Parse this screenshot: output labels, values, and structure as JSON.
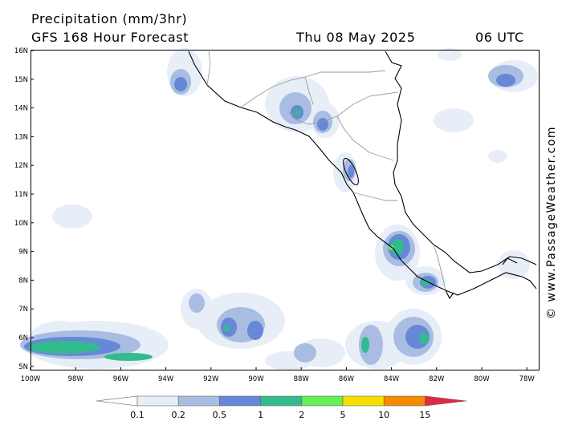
{
  "title": {
    "line1": "Precipitation (mm/3hr)",
    "line2": "GFS 168 Hour Forecast",
    "date": "Thu 08 May 2025",
    "time": "06 UTC"
  },
  "credit": "© www.PassageWeather.com",
  "axes": {
    "lat_labels": [
      "16N",
      "15N",
      "14N",
      "13N",
      "12N",
      "11N",
      "10N",
      "9N",
      "8N",
      "7N",
      "6N",
      "5N"
    ],
    "lon_labels": [
      "100W",
      "98W",
      "96W",
      "94W",
      "92W",
      "90W",
      "88W",
      "86W",
      "84W",
      "82W",
      "80W",
      "78W"
    ]
  },
  "legend": {
    "labels": [
      "0.1",
      "0.2",
      "0.5",
      "1",
      "2",
      "5",
      "10",
      "15"
    ],
    "colors": [
      "#ffffff",
      "#e8eef8",
      "#a9bde2",
      "#6688d6",
      "#33bb8e",
      "#66ee55",
      "#f5e000",
      "#f58a00",
      "#e02840"
    ]
  },
  "colors": {
    "land_border": "#000000",
    "political_border": "#9a9a9a",
    "precip_light": "#e8eef8",
    "precip_pale": "#a9bde2",
    "precip_mid": "#6688d6",
    "precip_teal": "#33bb8e",
    "precip_green": "#66ee55"
  }
}
